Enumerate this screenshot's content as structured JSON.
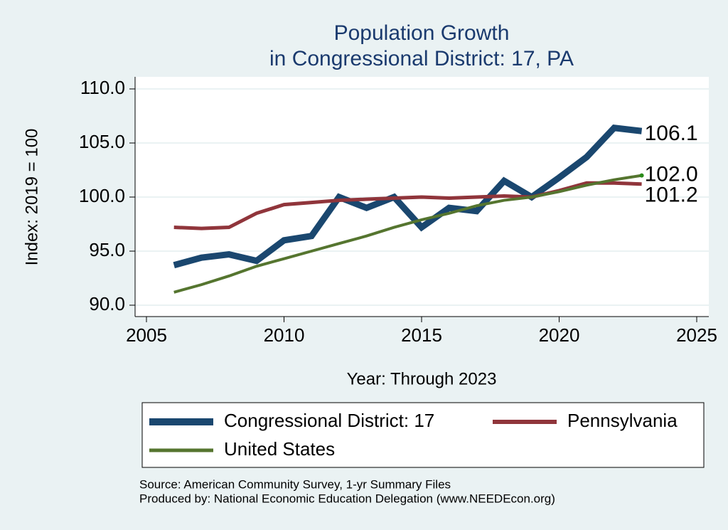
{
  "chart_data": {
    "type": "line",
    "title": [
      "Population Growth",
      "in Congressional District: 17, PA"
    ],
    "xlabel": "Year: Through 2023",
    "ylabel": "Index: 2019 = 100",
    "x": [
      2006,
      2007,
      2008,
      2009,
      2010,
      2011,
      2012,
      2013,
      2014,
      2015,
      2016,
      2017,
      2018,
      2019,
      2020,
      2021,
      2022,
      2023
    ],
    "series": [
      {
        "name": "Congressional District: 17",
        "color": "#1a476f",
        "values": [
          93.7,
          94.4,
          94.7,
          94.1,
          96.0,
          96.4,
          100.0,
          99.0,
          100.0,
          97.2,
          99.0,
          98.7,
          101.5,
          100.0,
          101.8,
          103.7,
          106.4,
          106.1
        ],
        "value_labels": [
          null,
          null,
          null,
          null,
          null,
          null,
          null,
          null,
          null,
          null,
          null,
          null,
          null,
          null,
          null,
          null,
          null,
          "106.1"
        ]
      },
      {
        "name": "Pennsylvania",
        "color": "#90353b",
        "values": [
          97.2,
          97.1,
          97.2,
          98.5,
          99.3,
          99.5,
          99.7,
          99.8,
          99.9,
          100.0,
          99.9,
          100.0,
          100.1,
          100.0,
          100.6,
          101.3,
          101.3,
          101.2
        ],
        "value_labels": [
          null,
          null,
          null,
          null,
          null,
          null,
          null,
          null,
          null,
          null,
          null,
          null,
          null,
          null,
          null,
          null,
          null,
          "101.2"
        ]
      },
      {
        "name": "United States",
        "color": "#55752f",
        "values": [
          91.2,
          91.9,
          92.7,
          93.6,
          94.3,
          95.0,
          95.7,
          96.4,
          97.2,
          97.9,
          98.5,
          99.2,
          99.7,
          100.0,
          100.5,
          101.1,
          101.6,
          102.0
        ],
        "value_labels": [
          null,
          null,
          null,
          null,
          null,
          null,
          null,
          null,
          null,
          null,
          null,
          null,
          null,
          null,
          null,
          null,
          null,
          "102.0"
        ]
      }
    ],
    "xlim": [
      2005,
      2025
    ],
    "xticks": [
      2005,
      2010,
      2015,
      2020,
      2025
    ],
    "ylim": [
      90,
      110
    ],
    "yticks": [
      {
        "value": 90,
        "label": "90.0"
      },
      {
        "value": 95,
        "label": "95.0"
      },
      {
        "value": 100,
        "label": "100.0"
      },
      {
        "value": 105,
        "label": "105.0"
      },
      {
        "value": 110,
        "label": "110.0"
      }
    ],
    "grid": true,
    "notes": [
      "Source: American Community Survey, 1-yr Summary Files",
      "Produced by: National Economic Education Delegation (www.NEEDEcon.org)"
    ]
  }
}
